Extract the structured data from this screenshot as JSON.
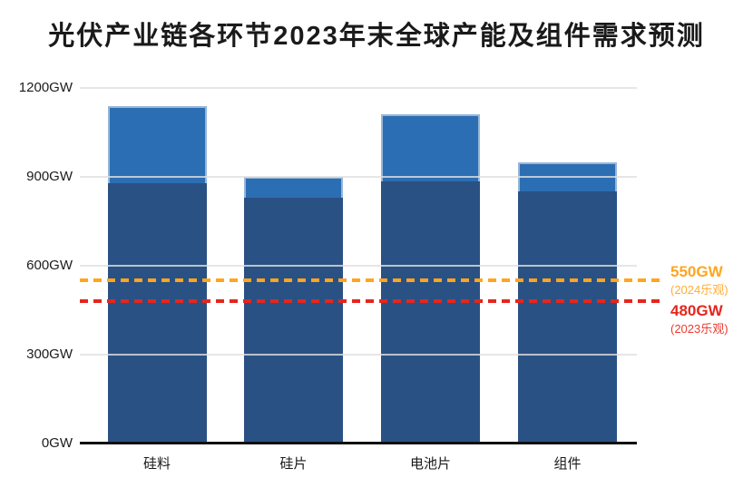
{
  "title": "光伏产业链各环节2023年末全球产能及组件需求预测",
  "chart_data": {
    "type": "bar",
    "subtype": "stacked",
    "title": "光伏产业链各环节2023年末全球产能及组件需求预测",
    "categories": [
      "硅料",
      "硅片",
      "电池片",
      "组件"
    ],
    "series": [
      {
        "name": "dark-blue-base-segment",
        "color": "#2A5183",
        "values": [
          880,
          830,
          885,
          850
        ]
      },
      {
        "name": "light-blue-top-segment",
        "color": "#2C6EB3",
        "values": [
          260,
          70,
          225,
          100
        ]
      }
    ],
    "stack_totals": [
      1140,
      900,
      1110,
      950
    ],
    "xlabel": "",
    "ylabel": "",
    "yticks": [
      0,
      300,
      600,
      900,
      1200
    ],
    "ytick_labels": [
      "0GW",
      "300GW",
      "600GW",
      "900GW",
      "1200GW"
    ],
    "ylim": [
      0,
      1237
    ],
    "grid": true,
    "legend": false,
    "reference_lines": [
      {
        "value": 550,
        "label": "550GW",
        "sublabel": "(2024乐观)",
        "color": "#FFA51E",
        "style": "dashed"
      },
      {
        "value": 480,
        "label": "480GW",
        "sublabel": "(2023乐观)",
        "color": "#E5261D",
        "style": "dashed"
      }
    ]
  },
  "colors": {
    "bar_dark": "#2A5183",
    "bar_light": "#2C6EB3",
    "grid": "#E0E0E0",
    "axis": "#111111",
    "title_text": "#1A1A1A",
    "line_2024": "#FFA51E",
    "line_2023": "#E5261D",
    "background": "#FFFFFF"
  }
}
